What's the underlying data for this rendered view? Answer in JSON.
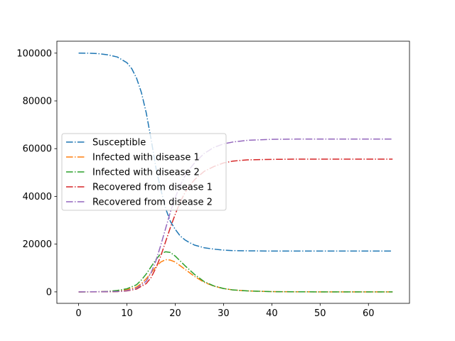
{
  "chart_data": {
    "type": "line",
    "title": "",
    "xlabel": "",
    "ylabel": "",
    "xlim": [
      -4.5,
      68.5
    ],
    "ylim": [
      -4800,
      105000
    ],
    "xticks": [
      0,
      10,
      20,
      30,
      40,
      50,
      60
    ],
    "yticks": [
      0,
      20000,
      40000,
      60000,
      80000,
      100000
    ],
    "xtick_labels": [
      "0",
      "10",
      "20",
      "30",
      "40",
      "50",
      "60"
    ],
    "ytick_labels": [
      "0",
      "20000",
      "40000",
      "60000",
      "80000",
      "100000"
    ],
    "line_style": "dashdot",
    "grid": false,
    "legend_position": "center-left",
    "series": [
      {
        "name": "Susceptible",
        "color": "#1f77b4",
        "x": [
          0,
          2,
          4,
          6,
          8,
          10,
          11,
          12,
          13,
          14,
          15,
          16,
          17,
          18,
          19,
          20,
          21,
          22,
          23,
          24,
          26,
          28,
          30,
          32,
          35,
          40,
          45,
          50,
          55,
          60,
          65
        ],
        "y": [
          100000,
          99980,
          99800,
          99300,
          98400,
          96000,
          93500,
          89500,
          83500,
          75000,
          64000,
          52000,
          43000,
          35000,
          29500,
          26200,
          23500,
          21800,
          20600,
          19600,
          18500,
          17900,
          17500,
          17300,
          17200,
          17100,
          17100,
          17100,
          17100,
          17100,
          17100
        ]
      },
      {
        "name": "Infected with disease 1",
        "color": "#ff7f0e",
        "x": [
          0,
          4,
          6,
          8,
          10,
          12,
          13,
          14,
          15,
          16,
          17,
          18,
          19,
          20,
          21,
          22,
          24,
          26,
          28,
          30,
          32,
          35,
          40,
          45,
          50,
          55,
          60,
          65
        ],
        "y": [
          0,
          20,
          150,
          400,
          900,
          2000,
          3500,
          5500,
          8000,
          10500,
          12500,
          13500,
          13300,
          12500,
          11000,
          9500,
          6500,
          4000,
          2400,
          1400,
          800,
          400,
          100,
          30,
          10,
          0,
          0,
          0
        ]
      },
      {
        "name": "Infected with disease 2",
        "color": "#2ca02c",
        "x": [
          0,
          4,
          6,
          8,
          10,
          12,
          13,
          14,
          15,
          16,
          17,
          18,
          19,
          20,
          21,
          22,
          24,
          26,
          28,
          30,
          32,
          35,
          40,
          45,
          50,
          55,
          60,
          65
        ],
        "y": [
          0,
          30,
          200,
          600,
          1300,
          3000,
          5000,
          7500,
          10500,
          13500,
          16000,
          16800,
          16500,
          15000,
          13000,
          11000,
          7300,
          4300,
          2500,
          1400,
          800,
          400,
          100,
          30,
          10,
          0,
          0,
          0
        ]
      },
      {
        "name": "Recovered from disease 1",
        "color": "#d62728",
        "x": [
          0,
          8,
          10,
          12,
          14,
          15,
          16,
          17,
          18,
          19,
          20,
          21,
          22,
          23,
          24,
          26,
          28,
          30,
          32,
          35,
          40,
          45,
          50,
          55,
          60,
          65
        ],
        "y": [
          0,
          100,
          400,
          1200,
          3500,
          6000,
          10000,
          15000,
          21000,
          27000,
          32500,
          37500,
          41500,
          44500,
          47000,
          50500,
          52500,
          54000,
          54800,
          55300,
          55500,
          55600,
          55600,
          55600,
          55600,
          55600
        ]
      },
      {
        "name": "Recovered from disease 2",
        "color": "#9467bd",
        "x": [
          0,
          8,
          10,
          12,
          14,
          15,
          16,
          17,
          18,
          19,
          20,
          21,
          22,
          23,
          24,
          26,
          28,
          30,
          32,
          35,
          40,
          45,
          50,
          55,
          60,
          65
        ],
        "y": [
          0,
          150,
          500,
          1500,
          4500,
          8000,
          13000,
          19500,
          26500,
          33500,
          39500,
          44500,
          48500,
          51500,
          54000,
          58000,
          60500,
          62000,
          62800,
          63500,
          63900,
          64000,
          64000,
          64000,
          64000,
          64000
        ]
      }
    ]
  }
}
